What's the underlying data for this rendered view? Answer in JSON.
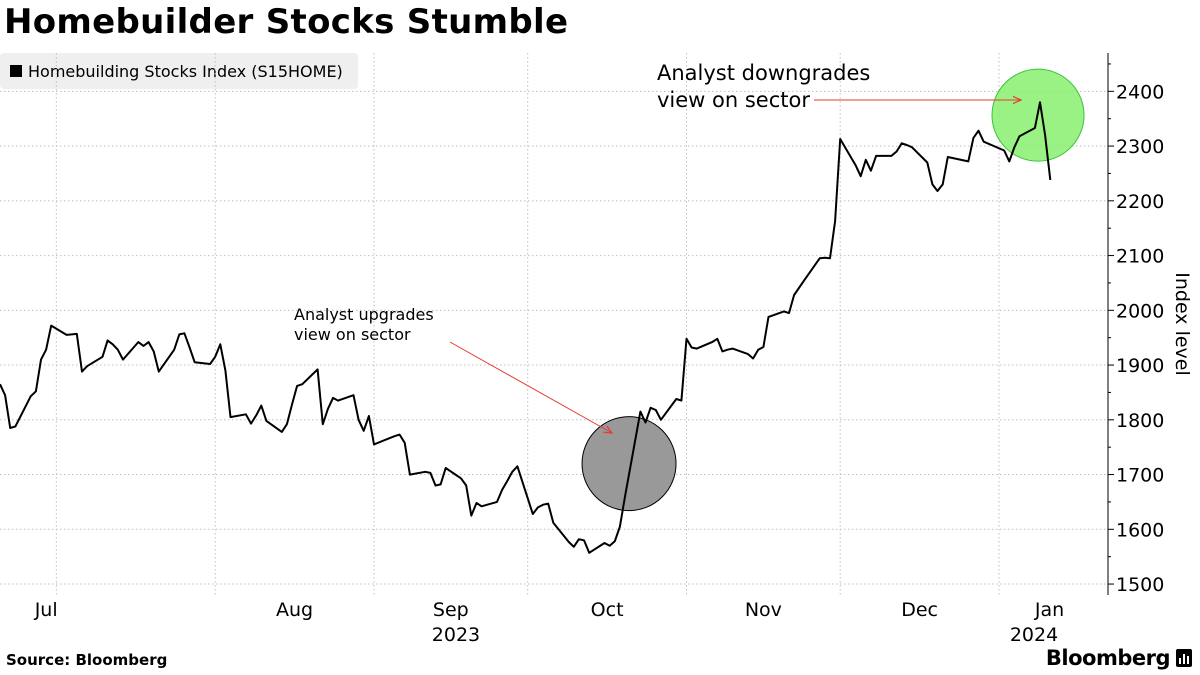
{
  "header": {
    "title": "Homebuilder Stocks Stumble",
    "legend_label": "Homebuilding Stocks Index (S15HOME)"
  },
  "footer": {
    "source": "Source: Bloomberg",
    "brand": "Bloomberg"
  },
  "colors": {
    "line": "#000000",
    "grid": "#bfbfbf",
    "arrow": "#e8382f",
    "upgrade_circle": "#999999",
    "downgrade_circle": "#8af06e"
  },
  "chart_data": {
    "type": "line",
    "title": "Homebuilder Stocks Stumble",
    "ylabel": "Index level",
    "xlabel": "",
    "ylim": [
      1480,
      2470
    ],
    "yticks": [
      1500,
      1600,
      1700,
      1800,
      1900,
      2000,
      2100,
      2200,
      2300,
      2400
    ],
    "y_axis_side": "right",
    "grid": "horizontal dotted",
    "x_start": "2023-06-20",
    "x_end": "2024-01-17",
    "month_ticks": [
      {
        "label": "Jul",
        "date": "2023-07-01"
      },
      {
        "label": "Aug",
        "date": "2023-08-01"
      },
      {
        "label": "Sep",
        "date": "2023-09-01"
      },
      {
        "label": "Oct",
        "date": "2023-10-01"
      },
      {
        "label": "Nov",
        "date": "2023-11-01"
      },
      {
        "label": "Dec",
        "date": "2023-12-01"
      },
      {
        "label": "Jan",
        "date": "2024-01-01"
      }
    ],
    "year_labels": [
      {
        "label": "2023",
        "date": "2023-09-17"
      },
      {
        "label": "2024",
        "date": "2024-01-01"
      }
    ],
    "series": [
      {
        "name": "Homebuilding Stocks Index (S15HOME)",
        "points": [
          [
            "2023-06-20",
            1865
          ],
          [
            "2023-06-21",
            1845
          ],
          [
            "2023-06-22",
            1785
          ],
          [
            "2023-06-23",
            1788
          ],
          [
            "2023-06-26",
            1843
          ],
          [
            "2023-06-27",
            1852
          ],
          [
            "2023-06-28",
            1910
          ],
          [
            "2023-06-29",
            1928
          ],
          [
            "2023-06-30",
            1972
          ],
          [
            "2023-07-03",
            1955
          ],
          [
            "2023-07-05",
            1957
          ],
          [
            "2023-07-06",
            1888
          ],
          [
            "2023-07-07",
            1898
          ],
          [
            "2023-07-10",
            1915
          ],
          [
            "2023-07-11",
            1945
          ],
          [
            "2023-07-12",
            1938
          ],
          [
            "2023-07-13",
            1928
          ],
          [
            "2023-07-14",
            1910
          ],
          [
            "2023-07-17",
            1942
          ],
          [
            "2023-07-18",
            1935
          ],
          [
            "2023-07-19",
            1942
          ],
          [
            "2023-07-20",
            1925
          ],
          [
            "2023-07-21",
            1888
          ],
          [
            "2023-07-24",
            1928
          ],
          [
            "2023-07-25",
            1956
          ],
          [
            "2023-07-26",
            1958
          ],
          [
            "2023-07-27",
            1932
          ],
          [
            "2023-07-28",
            1905
          ],
          [
            "2023-07-31",
            1902
          ],
          [
            "2023-08-01",
            1915
          ],
          [
            "2023-08-02",
            1938
          ],
          [
            "2023-08-03",
            1890
          ],
          [
            "2023-08-04",
            1805
          ],
          [
            "2023-08-07",
            1810
          ],
          [
            "2023-08-08",
            1793
          ],
          [
            "2023-08-09",
            1808
          ],
          [
            "2023-08-10",
            1826
          ],
          [
            "2023-08-11",
            1798
          ],
          [
            "2023-08-14",
            1778
          ],
          [
            "2023-08-15",
            1792
          ],
          [
            "2023-08-16",
            1828
          ],
          [
            "2023-08-17",
            1862
          ],
          [
            "2023-08-18",
            1865
          ],
          [
            "2023-08-21",
            1892
          ],
          [
            "2023-08-22",
            1792
          ],
          [
            "2023-08-23",
            1820
          ],
          [
            "2023-08-24",
            1840
          ],
          [
            "2023-08-25",
            1835
          ],
          [
            "2023-08-28",
            1845
          ],
          [
            "2023-08-29",
            1800
          ],
          [
            "2023-08-30",
            1780
          ],
          [
            "2023-08-31",
            1807
          ],
          [
            "2023-09-01",
            1755
          ],
          [
            "2023-09-05",
            1770
          ],
          [
            "2023-09-06",
            1773
          ],
          [
            "2023-09-07",
            1758
          ],
          [
            "2023-09-08",
            1700
          ],
          [
            "2023-09-11",
            1705
          ],
          [
            "2023-09-12",
            1703
          ],
          [
            "2023-09-13",
            1680
          ],
          [
            "2023-09-14",
            1682
          ],
          [
            "2023-09-15",
            1712
          ],
          [
            "2023-09-18",
            1693
          ],
          [
            "2023-09-19",
            1680
          ],
          [
            "2023-09-20",
            1625
          ],
          [
            "2023-09-21",
            1648
          ],
          [
            "2023-09-22",
            1642
          ],
          [
            "2023-09-25",
            1650
          ],
          [
            "2023-09-26",
            1672
          ],
          [
            "2023-09-27",
            1688
          ],
          [
            "2023-09-28",
            1705
          ],
          [
            "2023-09-29",
            1715
          ],
          [
            "2023-10-02",
            1628
          ],
          [
            "2023-10-03",
            1640
          ],
          [
            "2023-10-04",
            1645
          ],
          [
            "2023-10-05",
            1647
          ],
          [
            "2023-10-06",
            1612
          ],
          [
            "2023-10-09",
            1577
          ],
          [
            "2023-10-10",
            1568
          ],
          [
            "2023-10-11",
            1582
          ],
          [
            "2023-10-12",
            1580
          ],
          [
            "2023-10-13",
            1557
          ],
          [
            "2023-10-16",
            1575
          ],
          [
            "2023-10-17",
            1570
          ],
          [
            "2023-10-18",
            1578
          ],
          [
            "2023-10-19",
            1605
          ],
          [
            "2023-10-20",
            1660
          ],
          [
            "2023-10-23",
            1815
          ],
          [
            "2023-10-24",
            1795
          ],
          [
            "2023-10-25",
            1822
          ],
          [
            "2023-10-26",
            1818
          ],
          [
            "2023-10-27",
            1800
          ],
          [
            "2023-10-30",
            1838
          ],
          [
            "2023-10-31",
            1835
          ],
          [
            "2023-11-01",
            1948
          ],
          [
            "2023-11-02",
            1932
          ],
          [
            "2023-11-03",
            1930
          ],
          [
            "2023-11-06",
            1942
          ],
          [
            "2023-11-07",
            1948
          ],
          [
            "2023-11-08",
            1925
          ],
          [
            "2023-11-09",
            1928
          ],
          [
            "2023-11-10",
            1930
          ],
          [
            "2023-11-13",
            1920
          ],
          [
            "2023-11-14",
            1912
          ],
          [
            "2023-11-15",
            1928
          ],
          [
            "2023-11-16",
            1933
          ],
          [
            "2023-11-17",
            1988
          ],
          [
            "2023-11-20",
            1998
          ],
          [
            "2023-11-21",
            1995
          ],
          [
            "2023-11-22",
            2028
          ],
          [
            "2023-11-24",
            2055
          ],
          [
            "2023-11-27",
            2095
          ],
          [
            "2023-11-28",
            2096
          ],
          [
            "2023-11-29",
            2095
          ],
          [
            "2023-11-30",
            2163
          ],
          [
            "2023-12-01",
            2313
          ],
          [
            "2023-12-04",
            2265
          ],
          [
            "2023-12-05",
            2245
          ],
          [
            "2023-12-06",
            2275
          ],
          [
            "2023-12-07",
            2255
          ],
          [
            "2023-12-08",
            2282
          ],
          [
            "2023-12-11",
            2282
          ],
          [
            "2023-12-12",
            2290
          ],
          [
            "2023-12-13",
            2305
          ],
          [
            "2023-12-14",
            2302
          ],
          [
            "2023-12-15",
            2298
          ],
          [
            "2023-12-18",
            2270
          ],
          [
            "2023-12-19",
            2230
          ],
          [
            "2023-12-20",
            2218
          ],
          [
            "2023-12-21",
            2230
          ],
          [
            "2023-12-22",
            2280
          ],
          [
            "2023-12-26",
            2272
          ],
          [
            "2023-12-27",
            2315
          ],
          [
            "2023-12-28",
            2328
          ],
          [
            "2023-12-29",
            2308
          ],
          [
            "2024-01-02",
            2292
          ],
          [
            "2024-01-03",
            2272
          ],
          [
            "2024-01-04",
            2298
          ],
          [
            "2024-01-05",
            2318
          ],
          [
            "2024-01-08",
            2333
          ],
          [
            "2024-01-09",
            2380
          ],
          [
            "2024-01-10",
            2320
          ],
          [
            "2024-01-11",
            2238
          ]
        ]
      }
    ],
    "annotations": [
      {
        "text_lines": [
          "Analyst upgrades",
          "view on sector"
        ],
        "marker": "circle",
        "marker_at": {
          "date": "2023-10-20",
          "value": 1720
        },
        "marker_color": "#999999"
      },
      {
        "text_lines": [
          "Analyst downgrades",
          "view on sector"
        ],
        "marker": "circle",
        "marker_at": {
          "date": "2024-01-09",
          "value": 2382
        },
        "marker_color": "#8af06e"
      }
    ]
  }
}
